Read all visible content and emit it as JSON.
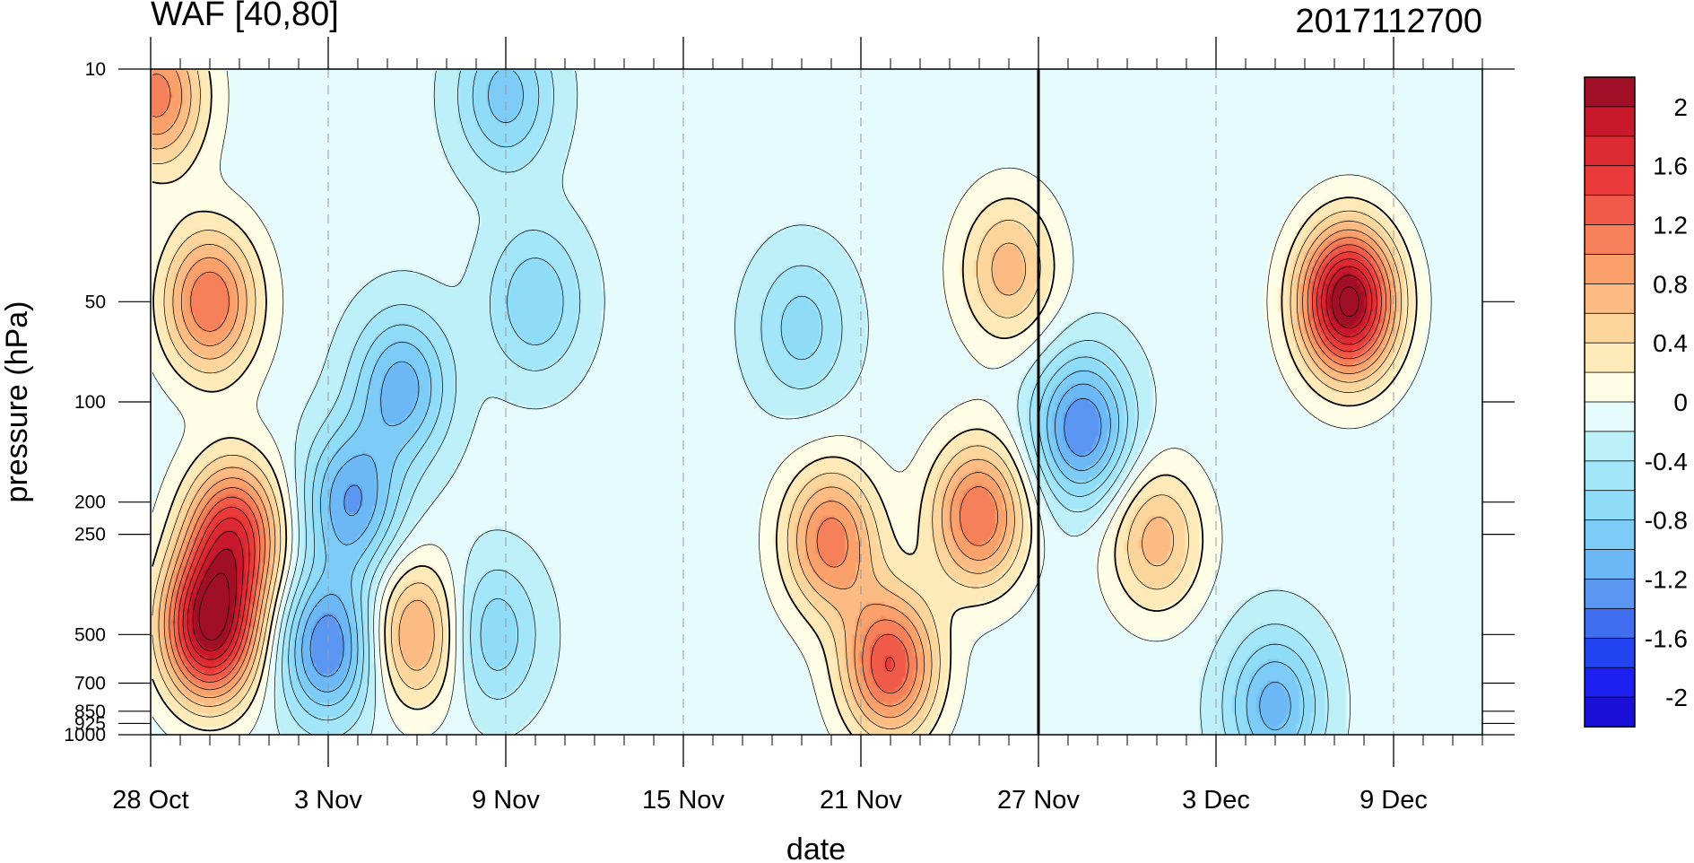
{
  "chart_data": {
    "type": "heatmap",
    "title_left": "WAF [40,80]",
    "title_right": "2017112700",
    "xlabel": "date",
    "ylabel": "pressure (hPa)",
    "x_ticks": [
      "28 Oct",
      "3 Nov",
      "9 Nov",
      "15 Nov",
      "21 Nov",
      "27 Nov",
      "3 Dec",
      "9 Dec"
    ],
    "x_tick_days": [
      0,
      6,
      12,
      18,
      24,
      30,
      36,
      42
    ],
    "x_range_days": [
      0,
      45
    ],
    "y_ticks": [
      "10",
      "50",
      "100",
      "200",
      "250",
      "500",
      "700",
      "850",
      "925",
      "1000"
    ],
    "y_tick_values": [
      10,
      50,
      100,
      200,
      250,
      500,
      700,
      850,
      925,
      1000
    ],
    "y_range": [
      10,
      1000
    ],
    "y_scale": "log",
    "y_reversed": true,
    "reference_line_day": 30,
    "colorbar_labels": [
      "2",
      "1.6",
      "1.2",
      "0.8",
      "0.4",
      "0",
      "-0.4",
      "-0.8",
      "-1.2",
      "-1.6",
      "-2"
    ],
    "contour_levels": [
      -2.2,
      -2.0,
      -1.8,
      -1.6,
      -1.4,
      -1.2,
      -1.0,
      -0.8,
      -0.6,
      -0.4,
      -0.2,
      0,
      0.2,
      0.4,
      0.6,
      0.8,
      1.0,
      1.2,
      1.4,
      1.6,
      1.8,
      2.0
    ],
    "colors": [
      "#1a0fd6",
      "#1c1ff0",
      "#2244f0",
      "#3f6ef0",
      "#5a96f2",
      "#6cb7f5",
      "#7dcbf7",
      "#8fdcf8",
      "#a3e6f9",
      "#bdf0f9",
      "#e6fbfb",
      "#fffde6",
      "#fdeab8",
      "#fbd59b",
      "#fbbb83",
      "#f9a06b",
      "#f5805a",
      "#f05a48",
      "#ea3a3a",
      "#dd2a32",
      "#c8182c",
      "#a00f25"
    ],
    "features": [
      {
        "day": 2.0,
        "p": 480,
        "value": 1.9
      },
      {
        "day": 2.8,
        "p": 250,
        "value": 1.3
      },
      {
        "day": 2.0,
        "p": 50,
        "value": 1.0
      },
      {
        "day": 0.2,
        "p": 12,
        "value": 0.9
      },
      {
        "day": 6.0,
        "p": 550,
        "value": -1.6
      },
      {
        "day": 6.8,
        "p": 200,
        "value": -1.4
      },
      {
        "day": 8.5,
        "p": 90,
        "value": -1.3
      },
      {
        "day": 9.0,
        "p": 500,
        "value": 0.7
      },
      {
        "day": 11.5,
        "p": 500,
        "value": -1.0
      },
      {
        "day": 12.0,
        "p": 12,
        "value": -1.1
      },
      {
        "day": 13.0,
        "p": 50,
        "value": -1.0
      },
      {
        "day": 22.0,
        "p": 60,
        "value": -0.9
      },
      {
        "day": 23.0,
        "p": 260,
        "value": 0.9
      },
      {
        "day": 25.0,
        "p": 620,
        "value": 1.2
      },
      {
        "day": 28.0,
        "p": 220,
        "value": 1.0
      },
      {
        "day": 31.5,
        "p": 120,
        "value": -1.6
      },
      {
        "day": 34.0,
        "p": 260,
        "value": 0.5
      },
      {
        "day": 38.0,
        "p": 820,
        "value": -1.3
      },
      {
        "day": 40.5,
        "p": 50,
        "value": 2.1
      },
      {
        "day": 29.0,
        "p": 40,
        "value": 0.5
      }
    ]
  }
}
